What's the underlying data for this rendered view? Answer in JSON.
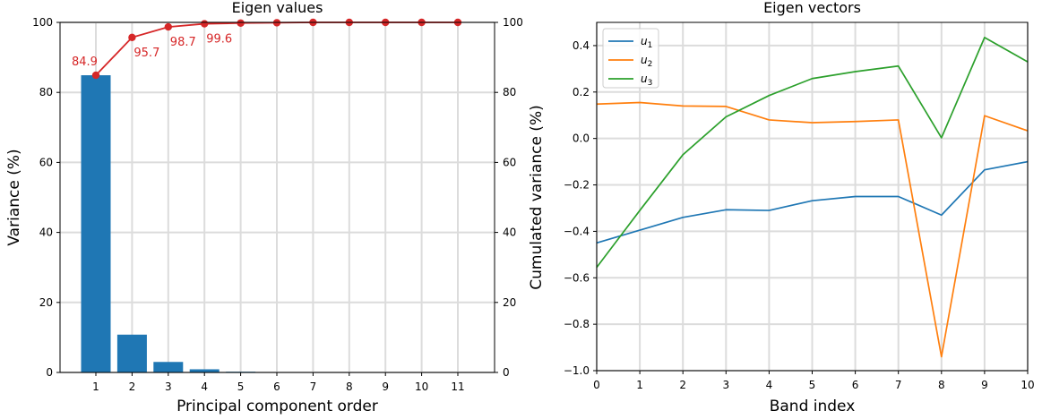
{
  "chart_data": [
    {
      "type": "bar",
      "title": "Eigen values",
      "xlabel": "Principal component order",
      "ylabel": "Variance (%)",
      "y2label": "Cumulated variance (%)",
      "categories": [
        "1",
        "2",
        "3",
        "4",
        "5",
        "6",
        "7",
        "8",
        "9",
        "10",
        "11"
      ],
      "ylim": [
        0,
        100
      ],
      "y2lim": [
        0,
        100
      ],
      "yticks": [
        "0",
        "20",
        "40",
        "60",
        "80",
        "100"
      ],
      "y2ticks": [
        "0",
        "20",
        "40",
        "60",
        "80",
        "100"
      ],
      "grid": true,
      "series": [
        {
          "values": [
            84.9,
            10.8,
            3.0,
            0.9,
            0.2,
            0.1,
            0.1,
            0.0,
            0.0,
            0.0,
            0.0
          ],
          "color": "#1f77b4"
        },
        {
          "values": [
            84.9,
            95.7,
            98.7,
            99.6,
            99.8,
            99.9,
            100,
            100,
            100,
            100,
            100
          ],
          "color": "#d62728"
        }
      ],
      "annotations": [
        {
          "x": "1",
          "value": 84.9,
          "text": "84.9",
          "placement": "above-left"
        },
        {
          "x": "2",
          "value": 95.7,
          "text": "95.7",
          "placement": "below"
        },
        {
          "x": "3",
          "value": 98.7,
          "text": "98.7",
          "placement": "below"
        },
        {
          "x": "4",
          "value": 99.6,
          "text": "99.6",
          "placement": "below"
        }
      ]
    },
    {
      "type": "line",
      "title": "Eigen vectors",
      "xlabel": "Band index",
      "ylabel": "",
      "x": [
        0,
        1,
        2,
        3,
        4,
        5,
        6,
        7,
        8,
        9,
        10
      ],
      "xlim": [
        0,
        10
      ],
      "ylim": [
        -1.0,
        0.5
      ],
      "xticks": [
        "0",
        "1",
        "2",
        "3",
        "4",
        "5",
        "6",
        "7",
        "8",
        "9",
        "10"
      ],
      "yticks": [
        "−1.0",
        "−0.8",
        "−0.6",
        "−0.4",
        "−0.2",
        "0.0",
        "0.2",
        "0.4"
      ],
      "grid": true,
      "legend_position": "top-left",
      "series": [
        {
          "name": "u1",
          "sub": "1",
          "values": [
            -0.45,
            -0.395,
            -0.34,
            -0.307,
            -0.31,
            -0.268,
            -0.25,
            -0.25,
            -0.33,
            -0.135,
            -0.1
          ],
          "color": "#1f77b4"
        },
        {
          "name": "u2",
          "sub": "2",
          "values": [
            0.148,
            0.155,
            0.14,
            0.138,
            0.08,
            0.068,
            0.073,
            0.08,
            -0.94,
            0.098,
            0.033
          ],
          "color": "#ff7f0e"
        },
        {
          "name": "u3",
          "sub": "3",
          "values": [
            -0.555,
            -0.31,
            -0.07,
            0.093,
            0.185,
            0.258,
            0.288,
            0.312,
            0.003,
            0.435,
            0.33
          ],
          "color": "#2ca02c"
        }
      ]
    }
  ]
}
